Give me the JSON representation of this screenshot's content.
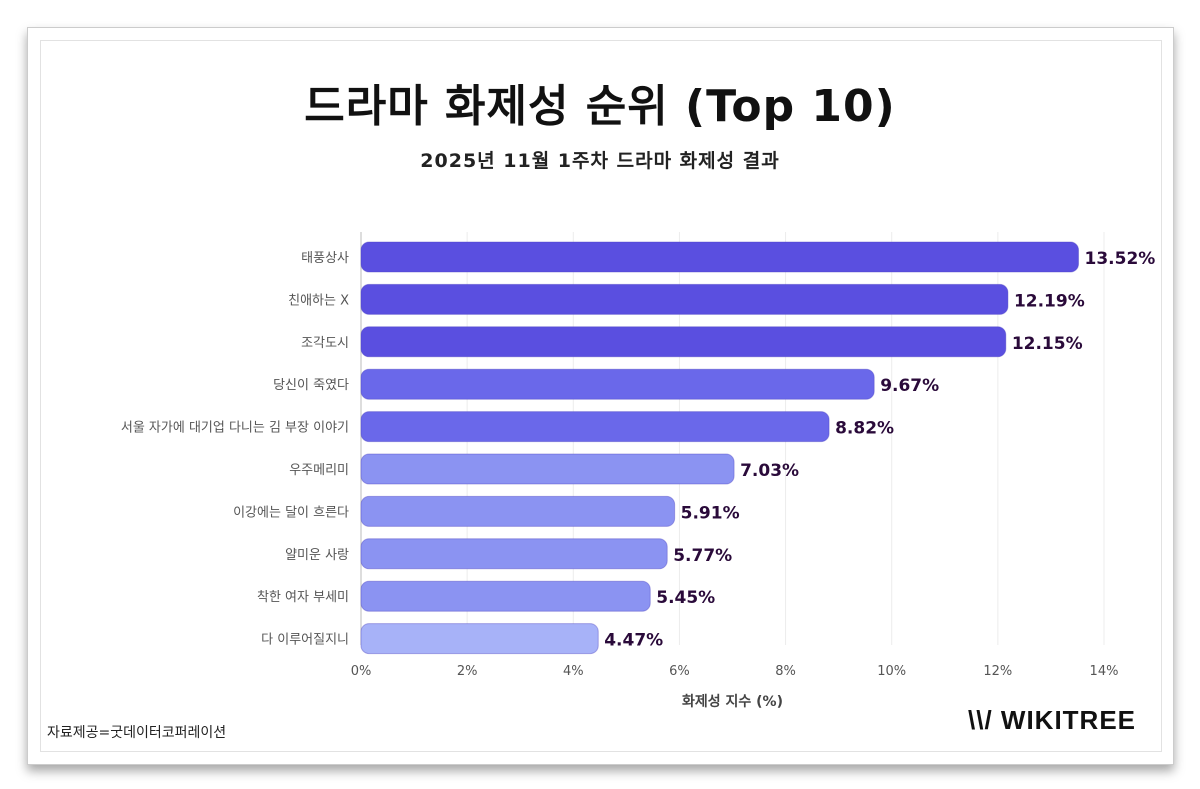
{
  "chart_data": {
    "type": "bar",
    "orientation": "horizontal",
    "title": "드라마 화제성 순위 (Top 10)",
    "subtitle": "2025년 11월 1주차 드라마 화제성 결과",
    "categories": [
      "태풍상사",
      "친애하는 X",
      "조각도시",
      "당신이 죽였다",
      "서울 자가에 대기업 다니는 김 부장 이야기",
      "우주메리미",
      "이강에는 달이 흐른다",
      "얄미운 사랑",
      "착한 여자 부세미",
      "다 이루어질지니"
    ],
    "values": [
      13.52,
      12.19,
      12.15,
      9.67,
      8.82,
      7.03,
      5.91,
      5.77,
      5.45,
      4.47
    ],
    "data_labels": [
      "13.52%",
      "12.19%",
      "12.15%",
      "9.67%",
      "8.82%",
      "7.03%",
      "5.91%",
      "5.77%",
      "5.45%",
      "4.47%"
    ],
    "bar_colors": [
      "#5a4fe0",
      "#5a4fe0",
      "#5a4fe0",
      "#6a68ea",
      "#6a68ea",
      "#8b93f2",
      "#8b93f2",
      "#8b93f2",
      "#8b93f2",
      "#a7b2f8"
    ],
    "xlabel": "화제성 지수 (%)",
    "xlim": [
      0,
      14
    ],
    "xticks": [
      "0%",
      "2%",
      "4%",
      "6%",
      "8%",
      "10%",
      "12%",
      "14%"
    ],
    "grid": true,
    "label_color": "#2a0a3a"
  },
  "footer": {
    "source": "자료제공=굿데이터코퍼레이션",
    "logo": "WIKITREE"
  }
}
